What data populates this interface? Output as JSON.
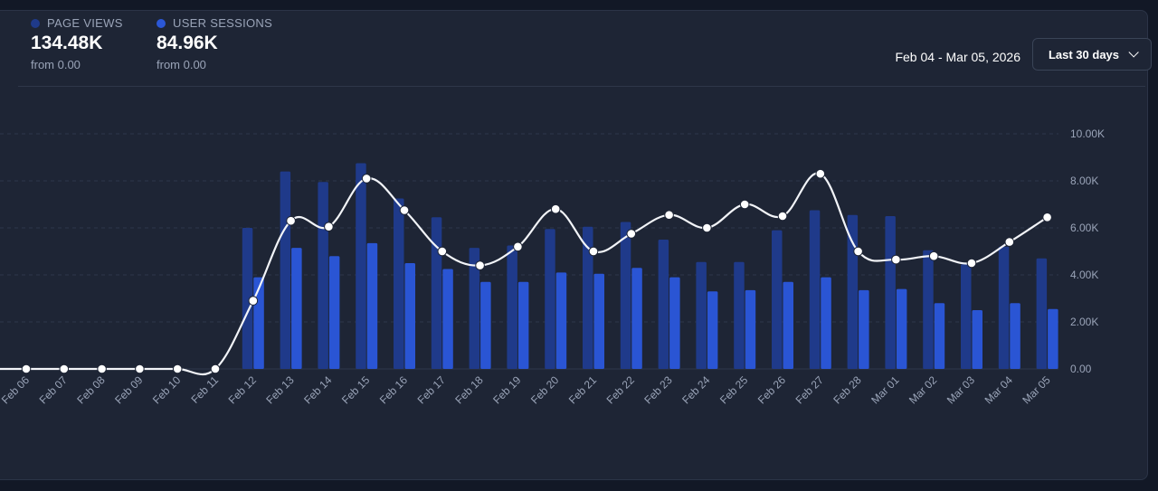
{
  "metrics": [
    {
      "label": "PAGE VIEWS",
      "value": "134.48K",
      "sub": "from 0.00",
      "color": "#1f3a8a"
    },
    {
      "label": "USER SESSIONS",
      "value": "84.96K",
      "sub": "from 0.00",
      "color": "#2b57d6"
    }
  ],
  "date_range": "Feb 04 - Mar 05, 2026",
  "range_button": "Last 30 days",
  "colors": {
    "page_views": "#1f3a8a",
    "user_sessions": "#2a55d4",
    "line": "#f2f4f8",
    "grid": "#2f384b"
  },
  "chart_data": {
    "type": "bar",
    "categories": [
      "Feb 06",
      "Feb 07",
      "Feb 08",
      "Feb 09",
      "Feb 10",
      "Feb 11",
      "Feb 12",
      "Feb 13",
      "Feb 14",
      "Feb 15",
      "Feb 16",
      "Feb 17",
      "Feb 18",
      "Feb 19",
      "Feb 20",
      "Feb 21",
      "Feb 22",
      "Feb 23",
      "Feb 24",
      "Feb 25",
      "Feb 26",
      "Feb 27",
      "Feb 28",
      "Mar 01",
      "Mar 02",
      "Mar 03",
      "Mar 04",
      "Mar 05"
    ],
    "series": [
      {
        "name": "PAGE VIEWS",
        "values": [
          0,
          0,
          0,
          0,
          0,
          0,
          6000,
          8400,
          7950,
          8750,
          7250,
          6450,
          5150,
          5250,
          5950,
          6050,
          6250,
          5500,
          4550,
          4550,
          5900,
          6750,
          6550,
          6500,
          5050,
          4450,
          5200,
          4700
        ]
      },
      {
        "name": "USER SESSIONS",
        "values": [
          0,
          0,
          0,
          0,
          0,
          0,
          3900,
          5150,
          4800,
          5350,
          4500,
          4250,
          3700,
          3700,
          4100,
          4050,
          4300,
          3900,
          3300,
          3350,
          3700,
          3900,
          3350,
          3400,
          2800,
          2500,
          2800,
          2550
        ]
      },
      {
        "type": "line",
        "values": [
          0,
          0,
          0,
          0,
          0,
          0,
          2900,
          6300,
          6050,
          8100,
          6750,
          5000,
          4400,
          5200,
          6800,
          5000,
          5750,
          6550,
          6000,
          7000,
          6500,
          8300,
          5000,
          4650,
          4800,
          4500,
          5400,
          6450
        ]
      }
    ],
    "ylim": [
      0,
      10000
    ],
    "y_ticks": [
      "0.00",
      "2.00K",
      "4.00K",
      "6.00K",
      "8.00K",
      "10.00K"
    ],
    "grid": true
  }
}
